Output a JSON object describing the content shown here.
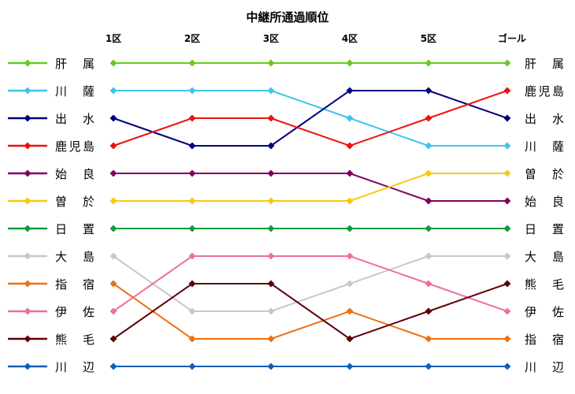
{
  "chart_data": {
    "type": "line",
    "title": "中継所通過順位",
    "xlabel": "",
    "ylabel": "",
    "categories": [
      "1区",
      "2区",
      "3区",
      "4区",
      "5区",
      "ゴール"
    ],
    "ylim": [
      12,
      1
    ],
    "y_inverted": true,
    "grid": false,
    "legend_position": "left",
    "series": [
      {
        "name": "肝属",
        "label": "肝　属",
        "color": "#66cc1a",
        "values": [
          1,
          1,
          1,
          1,
          1,
          1
        ]
      },
      {
        "name": "川薩",
        "label": "川　薩",
        "color": "#3fc4ee",
        "values": [
          2,
          2,
          2,
          3,
          4,
          4
        ]
      },
      {
        "name": "出水",
        "label": "出　水",
        "color": "#000080",
        "values": [
          3,
          4,
          4,
          2,
          2,
          3
        ]
      },
      {
        "name": "鹿児島",
        "label": "鹿児島",
        "color": "#ee1111",
        "values": [
          4,
          3,
          3,
          4,
          3,
          2
        ]
      },
      {
        "name": "始良",
        "label": "始　良",
        "color": "#800060",
        "values": [
          5,
          5,
          5,
          5,
          6,
          6
        ]
      },
      {
        "name": "曽於",
        "label": "曽　於",
        "color": "#f8c810",
        "values": [
          6,
          6,
          6,
          6,
          5,
          5
        ]
      },
      {
        "name": "日置",
        "label": "日　置",
        "color": "#119940",
        "values": [
          7,
          7,
          7,
          7,
          7,
          7
        ]
      },
      {
        "name": "大島",
        "label": "大　島",
        "color": "#c8c8c8",
        "values": [
          8,
          10,
          10,
          9,
          8,
          8
        ]
      },
      {
        "name": "指宿",
        "label": "指　宿",
        "color": "#f07010",
        "values": [
          9,
          11,
          11,
          10,
          11,
          11
        ]
      },
      {
        "name": "伊佐",
        "label": "伊　佐",
        "color": "#f06ea0",
        "values": [
          10,
          8,
          8,
          8,
          9,
          10
        ]
      },
      {
        "name": "熊毛",
        "label": "熊　毛",
        "color": "#600008",
        "values": [
          11,
          9,
          9,
          11,
          10,
          9
        ]
      },
      {
        "name": "川辺",
        "label": "川　辺",
        "color": "#1060b8",
        "values": [
          12,
          12,
          12,
          12,
          12,
          12
        ]
      }
    ]
  }
}
